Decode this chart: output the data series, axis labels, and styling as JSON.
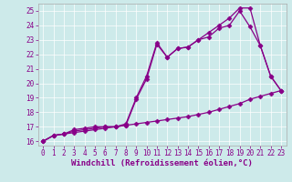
{
  "xlabel": "Windchill (Refroidissement éolien,°C)",
  "ylabel": "",
  "xlim": [
    -0.5,
    23.5
  ],
  "ylim": [
    15.7,
    25.5
  ],
  "xticks": [
    0,
    1,
    2,
    3,
    4,
    5,
    6,
    7,
    8,
    9,
    10,
    11,
    12,
    13,
    14,
    15,
    16,
    17,
    18,
    19,
    20,
    21,
    22,
    23
  ],
  "yticks": [
    16,
    17,
    18,
    19,
    20,
    21,
    22,
    23,
    24,
    25
  ],
  "bg_color": "#cdeaea",
  "line_color": "#880088",
  "line1_x": [
    0,
    1,
    2,
    3,
    4,
    5,
    6,
    7,
    8,
    9,
    10,
    11,
    12,
    13,
    14,
    15,
    16,
    17,
    18,
    19,
    20,
    21,
    22,
    23
  ],
  "line1_y": [
    16.0,
    16.4,
    16.5,
    16.6,
    16.7,
    16.8,
    16.9,
    17.0,
    17.1,
    17.2,
    17.3,
    17.4,
    17.5,
    17.6,
    17.7,
    17.85,
    18.0,
    18.2,
    18.4,
    18.6,
    18.9,
    19.1,
    19.3,
    19.5
  ],
  "line2_x": [
    0,
    1,
    2,
    3,
    4,
    5,
    6,
    7,
    8,
    9,
    10,
    11,
    12,
    13,
    14,
    15,
    16,
    17,
    18,
    19,
    20,
    21,
    22,
    23
  ],
  "line2_y": [
    16.0,
    16.4,
    16.5,
    16.7,
    16.8,
    16.9,
    17.0,
    17.0,
    17.1,
    18.9,
    20.3,
    22.7,
    21.8,
    22.4,
    22.5,
    23.0,
    23.2,
    23.8,
    24.0,
    25.0,
    23.9,
    22.6,
    20.5,
    19.5
  ],
  "line3_x": [
    0,
    1,
    2,
    3,
    4,
    5,
    6,
    7,
    8,
    9,
    10,
    11,
    12,
    13,
    14,
    15,
    16,
    17,
    18,
    19,
    20,
    21,
    22,
    23
  ],
  "line3_y": [
    16.0,
    16.4,
    16.5,
    16.8,
    16.9,
    17.0,
    17.0,
    17.0,
    17.2,
    19.0,
    20.5,
    22.8,
    21.8,
    22.4,
    22.5,
    23.0,
    23.5,
    24.0,
    24.5,
    25.2,
    25.2,
    22.6,
    20.5,
    19.5
  ],
  "marker": "D",
  "markersize": 2.5,
  "linewidth": 0.9,
  "tick_fontsize": 5.5,
  "xlabel_fontsize": 6.5
}
